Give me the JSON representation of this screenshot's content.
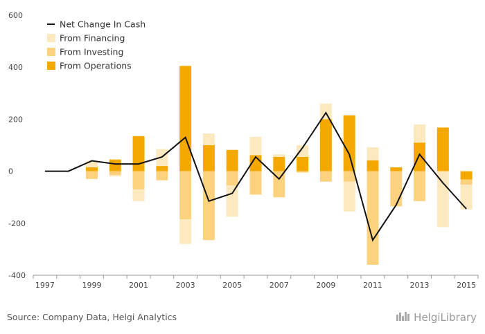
{
  "chart_data": {
    "type": "bar",
    "categories": [
      "1997",
      "1998",
      "1999",
      "2000",
      "2001",
      "2002",
      "2003",
      "2004",
      "2005",
      "2006",
      "2007",
      "2008",
      "2009",
      "2010",
      "2011",
      "2012",
      "2013",
      "2014",
      "2015"
    ],
    "x_tick_labels": [
      "1997",
      "1999",
      "2001",
      "2003",
      "2005",
      "2007",
      "2009",
      "2011",
      "2013",
      "2015"
    ],
    "ylim": [
      -400,
      600
    ],
    "y_ticks": [
      600,
      400,
      200,
      0,
      -200,
      -400
    ],
    "grid": false,
    "legend_position": "top-left",
    "series": [
      {
        "name": "From Financing",
        "type": "bar",
        "color": "#fde9bf",
        "values": [
          0,
          0,
          25,
          -5,
          -45,
          65,
          -95,
          45,
          -120,
          70,
          10,
          45,
          60,
          -115,
          50,
          0,
          70,
          -215,
          -95
        ]
      },
      {
        "name": "From Investing",
        "type": "bar",
        "color": "#fdd27f",
        "values": [
          0,
          0,
          -30,
          -15,
          -70,
          -35,
          -185,
          -265,
          -55,
          -90,
          -100,
          -5,
          -40,
          -40,
          -360,
          -135,
          -115,
          0,
          -20
        ]
      },
      {
        "name": "From Operations",
        "type": "bar",
        "color": "#f5a800",
        "values": [
          0,
          0,
          15,
          45,
          135,
          20,
          405,
          100,
          82,
          62,
          55,
          55,
          200,
          215,
          42,
          15,
          110,
          168,
          -32
        ]
      },
      {
        "name": "Net Change In Cash",
        "type": "line",
        "color": "#111111",
        "values": [
          0,
          0,
          40,
          28,
          28,
          55,
          130,
          -115,
          -85,
          55,
          -30,
          90,
          225,
          65,
          -265,
          -130,
          65,
          -45,
          -145
        ]
      }
    ]
  },
  "legend": [
    {
      "label": "Net Change In Cash",
      "kind": "line",
      "color": "#111111"
    },
    {
      "label": "From Financing",
      "kind": "box",
      "color": "#fde9bf"
    },
    {
      "label": "From Investing",
      "kind": "box",
      "color": "#fdd27f"
    },
    {
      "label": "From Operations",
      "kind": "box",
      "color": "#f5a800"
    }
  ],
  "footer": {
    "source": "Source: Company Data, Helgi Analytics",
    "logo": "HelgiLibrary"
  }
}
